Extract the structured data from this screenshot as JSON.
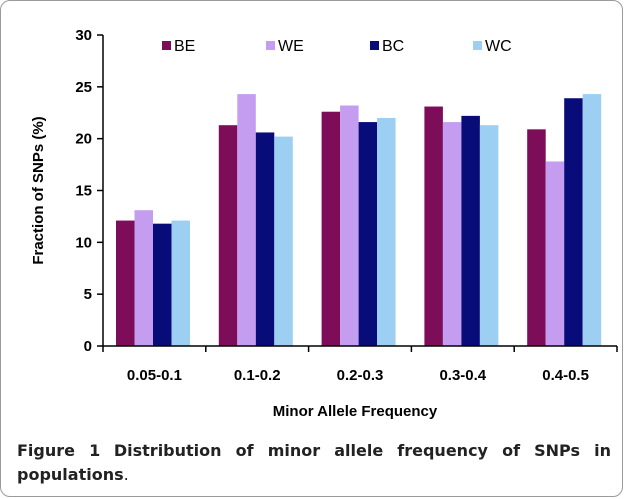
{
  "chart_data": {
    "type": "bar",
    "categories": [
      "0.05-0.1",
      "0.1-0.2",
      "0.2-0.3",
      "0.3-0.4",
      "0.4-0.5"
    ],
    "series": [
      {
        "name": "BE",
        "color": "#7d0c59",
        "values": [
          12.1,
          21.3,
          22.6,
          23.1,
          20.9
        ]
      },
      {
        "name": "WE",
        "color": "#c59df0",
        "values": [
          13.1,
          24.3,
          23.2,
          21.6,
          17.8
        ]
      },
      {
        "name": "BC",
        "color": "#080c78",
        "values": [
          11.8,
          20.6,
          21.6,
          22.2,
          23.9
        ]
      },
      {
        "name": "WC",
        "color": "#9dcff2",
        "values": [
          12.1,
          20.2,
          22.0,
          21.3,
          24.3
        ]
      }
    ],
    "xlabel": "Minor Allele Frequency",
    "ylabel": "Fraction of SNPs (%)",
    "ylim": [
      0,
      30
    ],
    "yticks": [
      "0",
      "5",
      "10",
      "15",
      "20",
      "25",
      "30"
    ],
    "grid": false,
    "legend_position": "top"
  },
  "caption": {
    "label": "Figure 1",
    "title": "Distribution of minor allele frequency of SNPs in populations",
    "end": "."
  }
}
